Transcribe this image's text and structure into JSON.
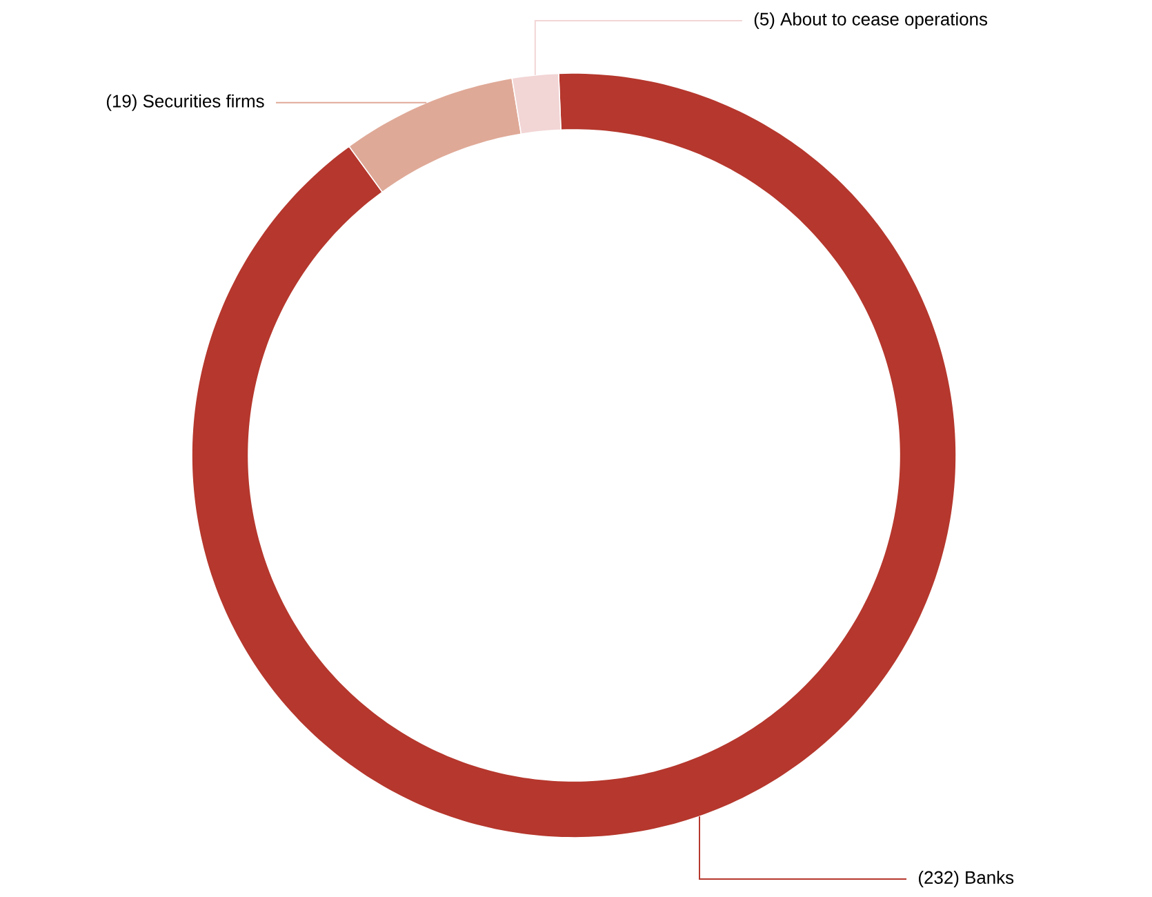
{
  "chart_data": {
    "type": "donut",
    "categories": [
      "Banks",
      "Securities firms",
      "About to cease operations"
    ],
    "values": [
      232,
      19,
      5
    ],
    "value_labels": [
      "(232)",
      "(19)",
      "(5)"
    ],
    "colors": [
      "#b5372d",
      "#dfa997",
      "#f2d5d5"
    ]
  }
}
